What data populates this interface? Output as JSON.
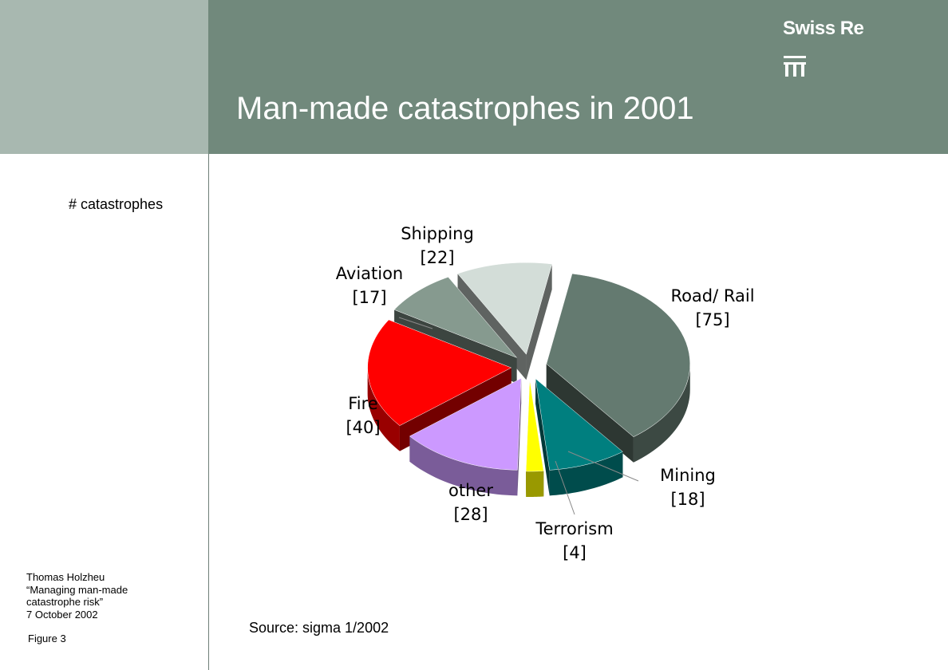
{
  "slide": {
    "title": "Man-made catastrophes in 2001",
    "brand": "Swiss Re",
    "unit_label": "# catastrophes",
    "source": "Source: sigma 1/2002",
    "author_lines": [
      "Thomas Holzheu",
      "“Managing man-made",
      "catastrophe risk”",
      "7 October 2002"
    ],
    "figure_label": "Figure 3"
  },
  "colors": {
    "header_band": "#71897c",
    "side_panel": "#a8b8b0"
  },
  "chart_data": {
    "type": "pie",
    "title": "Man-made catastrophes in 2001",
    "unit": "# catastrophes",
    "three_d": true,
    "exploded": true,
    "slices": [
      {
        "label": "Road/ Rail",
        "value": 75,
        "display": "[75]",
        "color": "#647a70"
      },
      {
        "label": "Mining",
        "value": 18,
        "display": "[18]",
        "color": "#007f7f"
      },
      {
        "label": "Terrorism",
        "value": 4,
        "display": "[4]",
        "color": "#ffff00"
      },
      {
        "label": "other",
        "value": 28,
        "display": "[28]",
        "color": "#cc99ff"
      },
      {
        "label": "Fire",
        "value": 40,
        "display": "[40]",
        "color": "#ff0000"
      },
      {
        "label": "Aviation",
        "value": 17,
        "display": "[17]",
        "color": "#869a8f"
      },
      {
        "label": "Shipping",
        "value": 22,
        "display": "[22]",
        "color": "#d3ddd8"
      }
    ]
  }
}
